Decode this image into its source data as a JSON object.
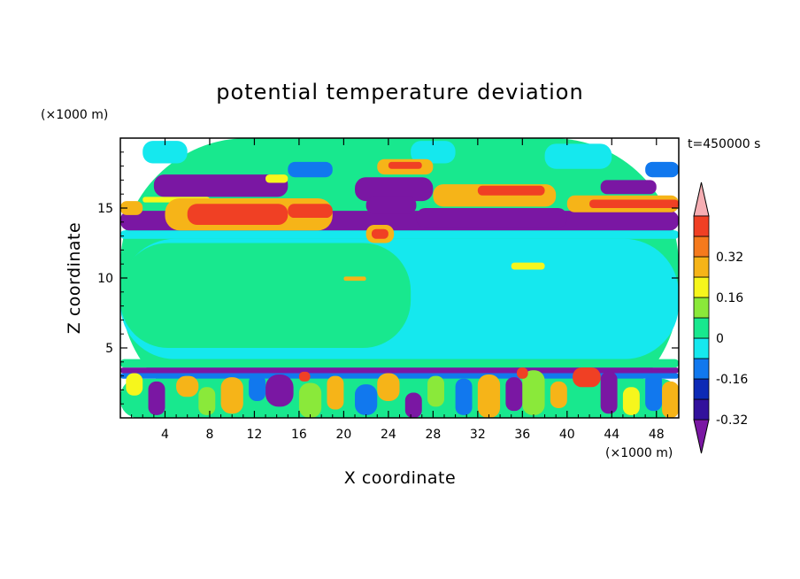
{
  "chart_data": {
    "type": "heatmap",
    "title": "potential temperature deviation",
    "xlabel": "X coordinate",
    "ylabel": "Z coordinate",
    "x_unit": "(×1000 m)",
    "y_unit": "(×1000 m)",
    "time_label": "t=450000 s",
    "xlim": [
      0,
      50
    ],
    "ylim": [
      0,
      20
    ],
    "x_ticks": [
      "4",
      "8",
      "12",
      "16",
      "20",
      "24",
      "28",
      "32",
      "36",
      "40",
      "44",
      "48"
    ],
    "y_ticks": [
      "5",
      "10",
      "15"
    ],
    "colorbar": {
      "colors": [
        "#7a17a3",
        "#32119c",
        "#0d2ab6",
        "#1178ee",
        "#15e8ee",
        "#18e88e",
        "#8ae93a",
        "#f6f61c",
        "#f6b418",
        "#f57a1d",
        "#f04024",
        "#f6aeb3"
      ],
      "labels": [
        "-0.32",
        "-0.16",
        "0",
        "0.16",
        "0.32"
      ],
      "label_values": [
        -0.32,
        -0.16,
        0,
        0.16,
        0.32
      ],
      "min": -0.4,
      "max": 0.4,
      "step": 0.08,
      "extend": "both"
    },
    "regions": [
      {
        "x0": 0,
        "x1": 50,
        "z0": 0,
        "z1": 20,
        "v": 0.02
      },
      {
        "x0": 0,
        "x1": 50,
        "z0": 4.2,
        "z1": 12.8,
        "v": -0.04
      },
      {
        "x0": 0,
        "x1": 26,
        "z0": 5,
        "z1": 12.5,
        "v": 0.02
      },
      {
        "x0": 0,
        "x1": 50,
        "z0": 12.8,
        "z1": 13.4,
        "v": -0.04
      },
      {
        "x0": 2,
        "x1": 6,
        "z0": 18.2,
        "z1": 19.8,
        "v": -0.04
      },
      {
        "x0": 26,
        "x1": 30,
        "z0": 18.2,
        "z1": 19.8,
        "v": -0.04
      },
      {
        "x0": 38,
        "x1": 44,
        "z0": 17.8,
        "z1": 19.6,
        "v": -0.04
      },
      {
        "x0": 15,
        "x1": 19,
        "z0": 17.2,
        "z1": 18.3,
        "v": -0.12
      },
      {
        "x0": 47,
        "x1": 50,
        "z0": 17.2,
        "z1": 18.3,
        "v": -0.12
      },
      {
        "x0": 3,
        "x1": 15,
        "z0": 15.8,
        "z1": 17.4,
        "v": -0.36
      },
      {
        "x0": 21,
        "x1": 28,
        "z0": 15.5,
        "z1": 17.2,
        "v": -0.36
      },
      {
        "x0": 43,
        "x1": 48,
        "z0": 16,
        "z1": 17,
        "v": -0.36
      },
      {
        "x0": 2,
        "x1": 8,
        "z0": 15.4,
        "z1": 15.8,
        "v": 0.22
      },
      {
        "x0": 0,
        "x1": 50,
        "z0": 13.4,
        "z1": 14.8,
        "v": -0.36
      },
      {
        "x0": 22,
        "x1": 26.5,
        "z0": 14.6,
        "z1": 15.8,
        "v": -0.42
      },
      {
        "x0": 26.5,
        "x1": 40,
        "z0": 13.6,
        "z1": 15,
        "v": -0.36
      },
      {
        "x0": 0,
        "x1": 2,
        "z0": 14.5,
        "z1": 15.5,
        "v": 0.3
      },
      {
        "x0": 4,
        "x1": 19,
        "z0": 13.4,
        "z1": 15.7,
        "v": 0.26
      },
      {
        "x0": 6,
        "x1": 15,
        "z0": 13.8,
        "z1": 15.3,
        "v": 0.4
      },
      {
        "x0": 15,
        "x1": 19,
        "z0": 14.3,
        "z1": 15.3,
        "v": 0.4
      },
      {
        "x0": 28,
        "x1": 39,
        "z0": 15.1,
        "z1": 16.7,
        "v": 0.26
      },
      {
        "x0": 32,
        "x1": 38,
        "z0": 15.9,
        "z1": 16.6,
        "v": 0.4
      },
      {
        "x0": 23,
        "x1": 28,
        "z0": 17.4,
        "z1": 18.5,
        "v": 0.3
      },
      {
        "x0": 24,
        "x1": 27,
        "z0": 17.8,
        "z1": 18.3,
        "v": 0.4
      },
      {
        "x0": 40,
        "x1": 50,
        "z0": 14.7,
        "z1": 15.9,
        "v": 0.26
      },
      {
        "x0": 42,
        "x1": 50,
        "z0": 15,
        "z1": 15.6,
        "v": 0.4
      },
      {
        "x0": 13,
        "x1": 15,
        "z0": 16.8,
        "z1": 17.4,
        "v": 0.22
      },
      {
        "x0": 22,
        "x1": 24.5,
        "z0": 12.5,
        "z1": 13.8,
        "v": 0.26
      },
      {
        "x0": 22.5,
        "x1": 24,
        "z0": 12.8,
        "z1": 13.5,
        "v": 0.4
      },
      {
        "x0": 35,
        "x1": 38,
        "z0": 10.6,
        "z1": 11.1,
        "v": 0.22
      },
      {
        "x0": 20,
        "x1": 22,
        "z0": 9.8,
        "z1": 10.1,
        "v": 0.3
      },
      {
        "x0": 0,
        "x1": 50,
        "z0": 3.2,
        "z1": 3.6,
        "v": -0.36
      },
      {
        "x0": 0,
        "x1": 50,
        "z0": 3.6,
        "z1": 4.2,
        "v": 0.02
      },
      {
        "x0": 0,
        "x1": 50,
        "z0": 2.8,
        "z1": 3.2,
        "v": -0.12
      },
      {
        "x0": 0,
        "x1": 50,
        "z0": 0,
        "z1": 2.8,
        "v": 0.02
      },
      {
        "x0": 0.5,
        "x1": 2,
        "z0": 1.6,
        "z1": 3.2,
        "v": 0.22
      },
      {
        "x0": 2.5,
        "x1": 4,
        "z0": 0.2,
        "z1": 2.6,
        "v": -0.36
      },
      {
        "x0": 5,
        "x1": 7,
        "z0": 1.5,
        "z1": 3,
        "v": 0.3
      },
      {
        "x0": 7,
        "x1": 8.5,
        "z0": 0.2,
        "z1": 2.2,
        "v": 0.14
      },
      {
        "x0": 9,
        "x1": 11,
        "z0": 0.3,
        "z1": 2.9,
        "v": 0.3
      },
      {
        "x0": 11.5,
        "x1": 13,
        "z0": 1.2,
        "z1": 3.1,
        "v": -0.12
      },
      {
        "x0": 13,
        "x1": 15.5,
        "z0": 0.8,
        "z1": 3.1,
        "v": -0.36
      },
      {
        "x0": 16,
        "x1": 18,
        "z0": 0,
        "z1": 2.5,
        "v": 0.14
      },
      {
        "x0": 18.5,
        "x1": 20,
        "z0": 0.6,
        "z1": 3,
        "v": 0.3
      },
      {
        "x0": 21,
        "x1": 23,
        "z0": 0.2,
        "z1": 2.4,
        "v": -0.12
      },
      {
        "x0": 23,
        "x1": 25,
        "z0": 1.2,
        "z1": 3.2,
        "v": 0.3
      },
      {
        "x0": 25.5,
        "x1": 27,
        "z0": 0,
        "z1": 1.8,
        "v": -0.36
      },
      {
        "x0": 27.5,
        "x1": 29,
        "z0": 0.8,
        "z1": 3,
        "v": 0.14
      },
      {
        "x0": 30,
        "x1": 31.5,
        "z0": 0.2,
        "z1": 2.8,
        "v": -0.12
      },
      {
        "x0": 32,
        "x1": 34,
        "z0": 0,
        "z1": 3.1,
        "v": 0.3
      },
      {
        "x0": 34.5,
        "x1": 36,
        "z0": 0.5,
        "z1": 2.9,
        "v": -0.36
      },
      {
        "x0": 36,
        "x1": 38,
        "z0": 0.2,
        "z1": 3.4,
        "v": 0.14
      },
      {
        "x0": 38.5,
        "x1": 40,
        "z0": 0.7,
        "z1": 2.6,
        "v": 0.3
      },
      {
        "x0": 40.5,
        "x1": 43,
        "z0": 2.2,
        "z1": 3.6,
        "v": 0.4
      },
      {
        "x0": 43,
        "x1": 44.5,
        "z0": 0.3,
        "z1": 3.3,
        "v": -0.36
      },
      {
        "x0": 45,
        "x1": 46.5,
        "z0": 0.2,
        "z1": 2.2,
        "v": 0.22
      },
      {
        "x0": 47,
        "x1": 48.5,
        "z0": 0.5,
        "z1": 3.2,
        "v": -0.12
      },
      {
        "x0": 48.5,
        "x1": 50,
        "z0": 0,
        "z1": 2.6,
        "v": 0.3
      },
      {
        "x0": 35.5,
        "x1": 36.5,
        "z0": 2.8,
        "z1": 3.6,
        "v": 0.4
      },
      {
        "x0": 16,
        "x1": 17,
        "z0": 2.6,
        "z1": 3.3,
        "v": 0.4
      }
    ]
  }
}
